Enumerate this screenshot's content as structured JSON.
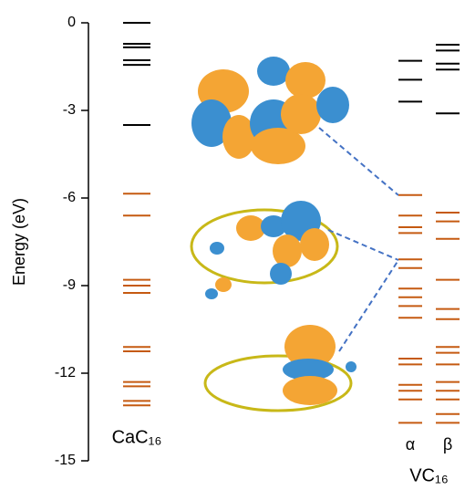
{
  "chart_data": {
    "type": "levels",
    "ylabel": "Energy (eV)",
    "ylim": [
      -15,
      0
    ],
    "yticks": [
      0,
      -3,
      -6,
      -9,
      -12,
      -15
    ],
    "groups": [
      {
        "name": "CaC₁₆",
        "columns": [
          {
            "levels": [
              {
                "color": "#000000",
                "values": [
                  0,
                  -0.72,
                  -0.84,
                  -1.28,
                  -1.44,
                  -3.5
                ]
              },
              {
                "color": "#c55a11",
                "values": [
                  -5.85,
                  -6.6,
                  -8.8,
                  -9.0,
                  -9.25,
                  -11.1,
                  -11.25,
                  -12.3,
                  -12.45,
                  -12.95,
                  -13.1
                ]
              }
            ]
          }
        ]
      },
      {
        "name": "VC₁₆",
        "columns": [
          {
            "name": "α",
            "levels": [
              {
                "color": "#000000",
                "values": [
                  -1.3,
                  -1.95,
                  -2.7
                ]
              },
              {
                "color": "#c55a11",
                "values": [
                  -5.9,
                  -6.6,
                  -7.0,
                  -7.2,
                  -8.1,
                  -8.4,
                  -9.1,
                  -9.4,
                  -9.7,
                  -10.1,
                  -11.5,
                  -11.7,
                  -12.4,
                  -12.6,
                  -12.9,
                  -13.7
                ]
              }
            ]
          },
          {
            "name": "β",
            "levels": [
              {
                "color": "#000000",
                "values": [
                  -0.75,
                  -0.95,
                  -1.4,
                  -1.6,
                  -3.1
                ]
              },
              {
                "color": "#c55a11",
                "values": [
                  -6.5,
                  -6.8,
                  -7.4,
                  -8.8,
                  -9.8,
                  -10.15,
                  -11.1,
                  -11.3,
                  -11.7,
                  -12.3,
                  -12.6,
                  -12.9,
                  -13.4,
                  -13.7
                ]
              }
            ]
          }
        ]
      }
    ]
  }
}
